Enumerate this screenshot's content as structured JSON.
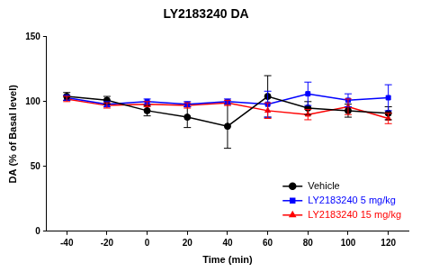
{
  "chart_data": {
    "type": "line",
    "title": "LY2183240 DA",
    "x_label": "Time (min)",
    "y_label": "DA (% of Basal level)",
    "x": [
      -40,
      -20,
      0,
      20,
      40,
      60,
      80,
      100,
      120
    ],
    "xlim": [
      -50,
      130
    ],
    "xticks": [
      -40,
      -20,
      0,
      20,
      40,
      60,
      80,
      100,
      120
    ],
    "ylim": [
      0,
      150
    ],
    "yticks": [
      0,
      50,
      100,
      150
    ],
    "grid": false,
    "legend": "lower right",
    "series": [
      {
        "name": "Vehicle",
        "color": "#000000",
        "marker": "circle",
        "values": [
          104,
          101,
          93,
          88,
          81,
          104,
          95,
          93,
          91
        ],
        "errors": [
          3,
          3,
          4,
          8,
          17,
          16,
          5,
          5,
          5
        ]
      },
      {
        "name": "LY2183240 5 mg/kg",
        "color": "#0000ff",
        "marker": "square",
        "values": [
          103,
          98,
          100,
          98,
          100,
          98,
          106,
          101,
          103
        ],
        "errors": [
          2,
          2,
          2,
          2,
          2,
          10,
          9,
          5,
          10
        ]
      },
      {
        "name": "LY2183240 15 mg/kg",
        "color": "#ff0000",
        "marker": "triangle",
        "values": [
          102,
          97,
          98,
          97,
          99,
          93,
          90,
          96,
          87
        ],
        "errors": [
          2,
          2,
          2,
          2,
          2,
          6,
          4,
          6,
          4
        ]
      }
    ]
  }
}
